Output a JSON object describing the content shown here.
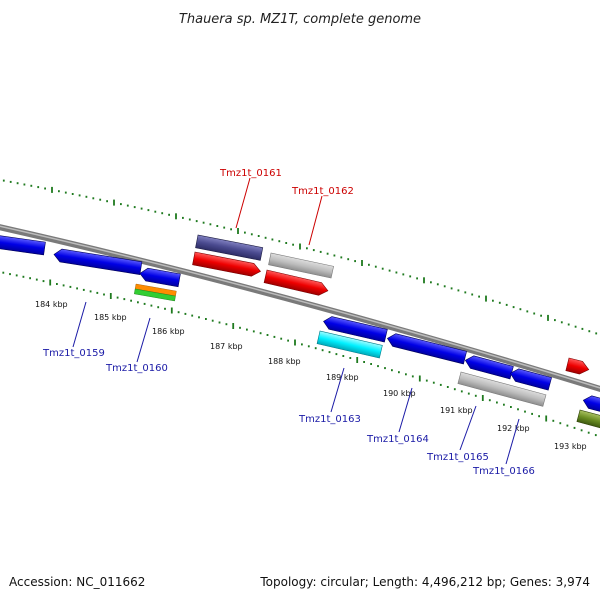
{
  "title": "Thauera sp. MZ1T, complete genome",
  "footer": {
    "accession": "Accession: NC_011662",
    "summary": "Topology: circular; Length: 4,496,212 bp; Genes: 3,974"
  },
  "colors": {
    "backbone": "#8a8a8a",
    "tick": "#1f7a1f",
    "forward_label": "#cc0000",
    "reverse_label": "#1a1aa6"
  },
  "scale_labels": [
    "184 kbp",
    "185 kbp",
    "186 kbp",
    "187 kbp",
    "188 kbp",
    "189 kbp",
    "190 kbp",
    "191 kbp",
    "192 kbp",
    "193 kbp"
  ],
  "genes": [
    {
      "label": "Tmz1t_0161",
      "strand": "forward"
    },
    {
      "label": "Tmz1t_0162",
      "strand": "forward"
    },
    {
      "label": "Tmz1t_0159",
      "strand": "reverse"
    },
    {
      "label": "Tmz1t_0160",
      "strand": "reverse"
    },
    {
      "label": "Tmz1t_0163",
      "strand": "reverse"
    },
    {
      "label": "Tmz1t_0164",
      "strand": "reverse"
    },
    {
      "label": "Tmz1t_0165",
      "strand": "reverse"
    },
    {
      "label": "Tmz1t_0166",
      "strand": "reverse"
    }
  ]
}
